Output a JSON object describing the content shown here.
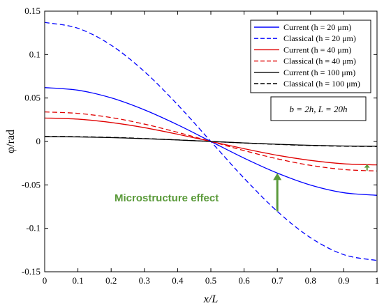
{
  "chart_data": {
    "type": "line",
    "xlabel": "x/L",
    "ylabel": "φ/rad",
    "xlim": [
      0,
      1
    ],
    "ylim": [
      -0.15,
      0.15
    ],
    "xticks": [
      "0",
      "0.1",
      "0.2",
      "0.3",
      "0.4",
      "0.5",
      "0.6",
      "0.7",
      "0.8",
      "0.9",
      "1"
    ],
    "yticks": [
      "0.15",
      "0.1",
      "0.05",
      "0",
      "-0.05",
      "-0.1",
      "-0.15"
    ],
    "grid": false,
    "legend_position": "top-right",
    "parameter_note": "b = 2h, L = 20h",
    "annotation": "Microstructure effect",
    "series": [
      {
        "name": "Current (h = 20 μm)",
        "color": "#0000ff",
        "dash": "solid",
        "x": [
          0,
          0.1,
          0.2,
          0.3,
          0.4,
          0.5,
          0.6,
          0.7,
          0.8,
          0.9,
          1.0
        ],
        "y": [
          0.062,
          0.059,
          0.0502,
          0.0364,
          0.0192,
          0,
          -0.0192,
          -0.0364,
          -0.0502,
          -0.059,
          -0.062
        ]
      },
      {
        "name": "Classical (h = 20 μm)",
        "color": "#0000ff",
        "dash": "dashed",
        "x": [
          0,
          0.1,
          0.2,
          0.3,
          0.4,
          0.5,
          0.6,
          0.7,
          0.8,
          0.9,
          1.0
        ],
        "y": [
          0.137,
          0.1303,
          0.1108,
          0.0805,
          0.0423,
          0,
          -0.0423,
          -0.0805,
          -0.1108,
          -0.1303,
          -0.137
        ]
      },
      {
        "name": "Current (h = 40 μm)",
        "color": "#e00000",
        "dash": "solid",
        "x": [
          0,
          0.1,
          0.2,
          0.3,
          0.4,
          0.5,
          0.6,
          0.7,
          0.8,
          0.9,
          1.0
        ],
        "y": [
          0.027,
          0.0257,
          0.0218,
          0.0159,
          0.0083,
          0,
          -0.0083,
          -0.0159,
          -0.0218,
          -0.0257,
          -0.027
        ]
      },
      {
        "name": "Classical (h = 40 μm)",
        "color": "#e00000",
        "dash": "dashed",
        "x": [
          0,
          0.1,
          0.2,
          0.3,
          0.4,
          0.5,
          0.6,
          0.7,
          0.8,
          0.9,
          1.0
        ],
        "y": [
          0.034,
          0.0323,
          0.0275,
          0.02,
          0.0105,
          0,
          -0.0105,
          -0.02,
          -0.0275,
          -0.0323,
          -0.034
        ]
      },
      {
        "name": "Current (h = 100 μm)",
        "color": "#000000",
        "dash": "solid",
        "x": [
          0,
          0.1,
          0.2,
          0.3,
          0.4,
          0.5,
          0.6,
          0.7,
          0.8,
          0.9,
          1.0
        ],
        "y": [
          0.0055,
          0.0052,
          0.0044,
          0.0032,
          0.0017,
          0,
          -0.0017,
          -0.0032,
          -0.0044,
          -0.0052,
          -0.0055
        ]
      },
      {
        "name": "Classical (h = 100 μm)",
        "color": "#000000",
        "dash": "dashed",
        "x": [
          0,
          0.1,
          0.2,
          0.3,
          0.4,
          0.5,
          0.6,
          0.7,
          0.8,
          0.9,
          1.0
        ],
        "y": [
          0.0058,
          0.0055,
          0.0047,
          0.0034,
          0.0018,
          0,
          -0.0018,
          -0.0034,
          -0.0047,
          -0.0055,
          -0.0058
        ]
      }
    ],
    "arrows": [
      {
        "x": 0.7,
        "y_from": -0.0805,
        "y_to": -0.0364,
        "color": "#5a9a3a"
      },
      {
        "x": 0.97,
        "y_from": -0.0335,
        "y_to": -0.0262,
        "color": "#5a9a3a"
      }
    ]
  }
}
